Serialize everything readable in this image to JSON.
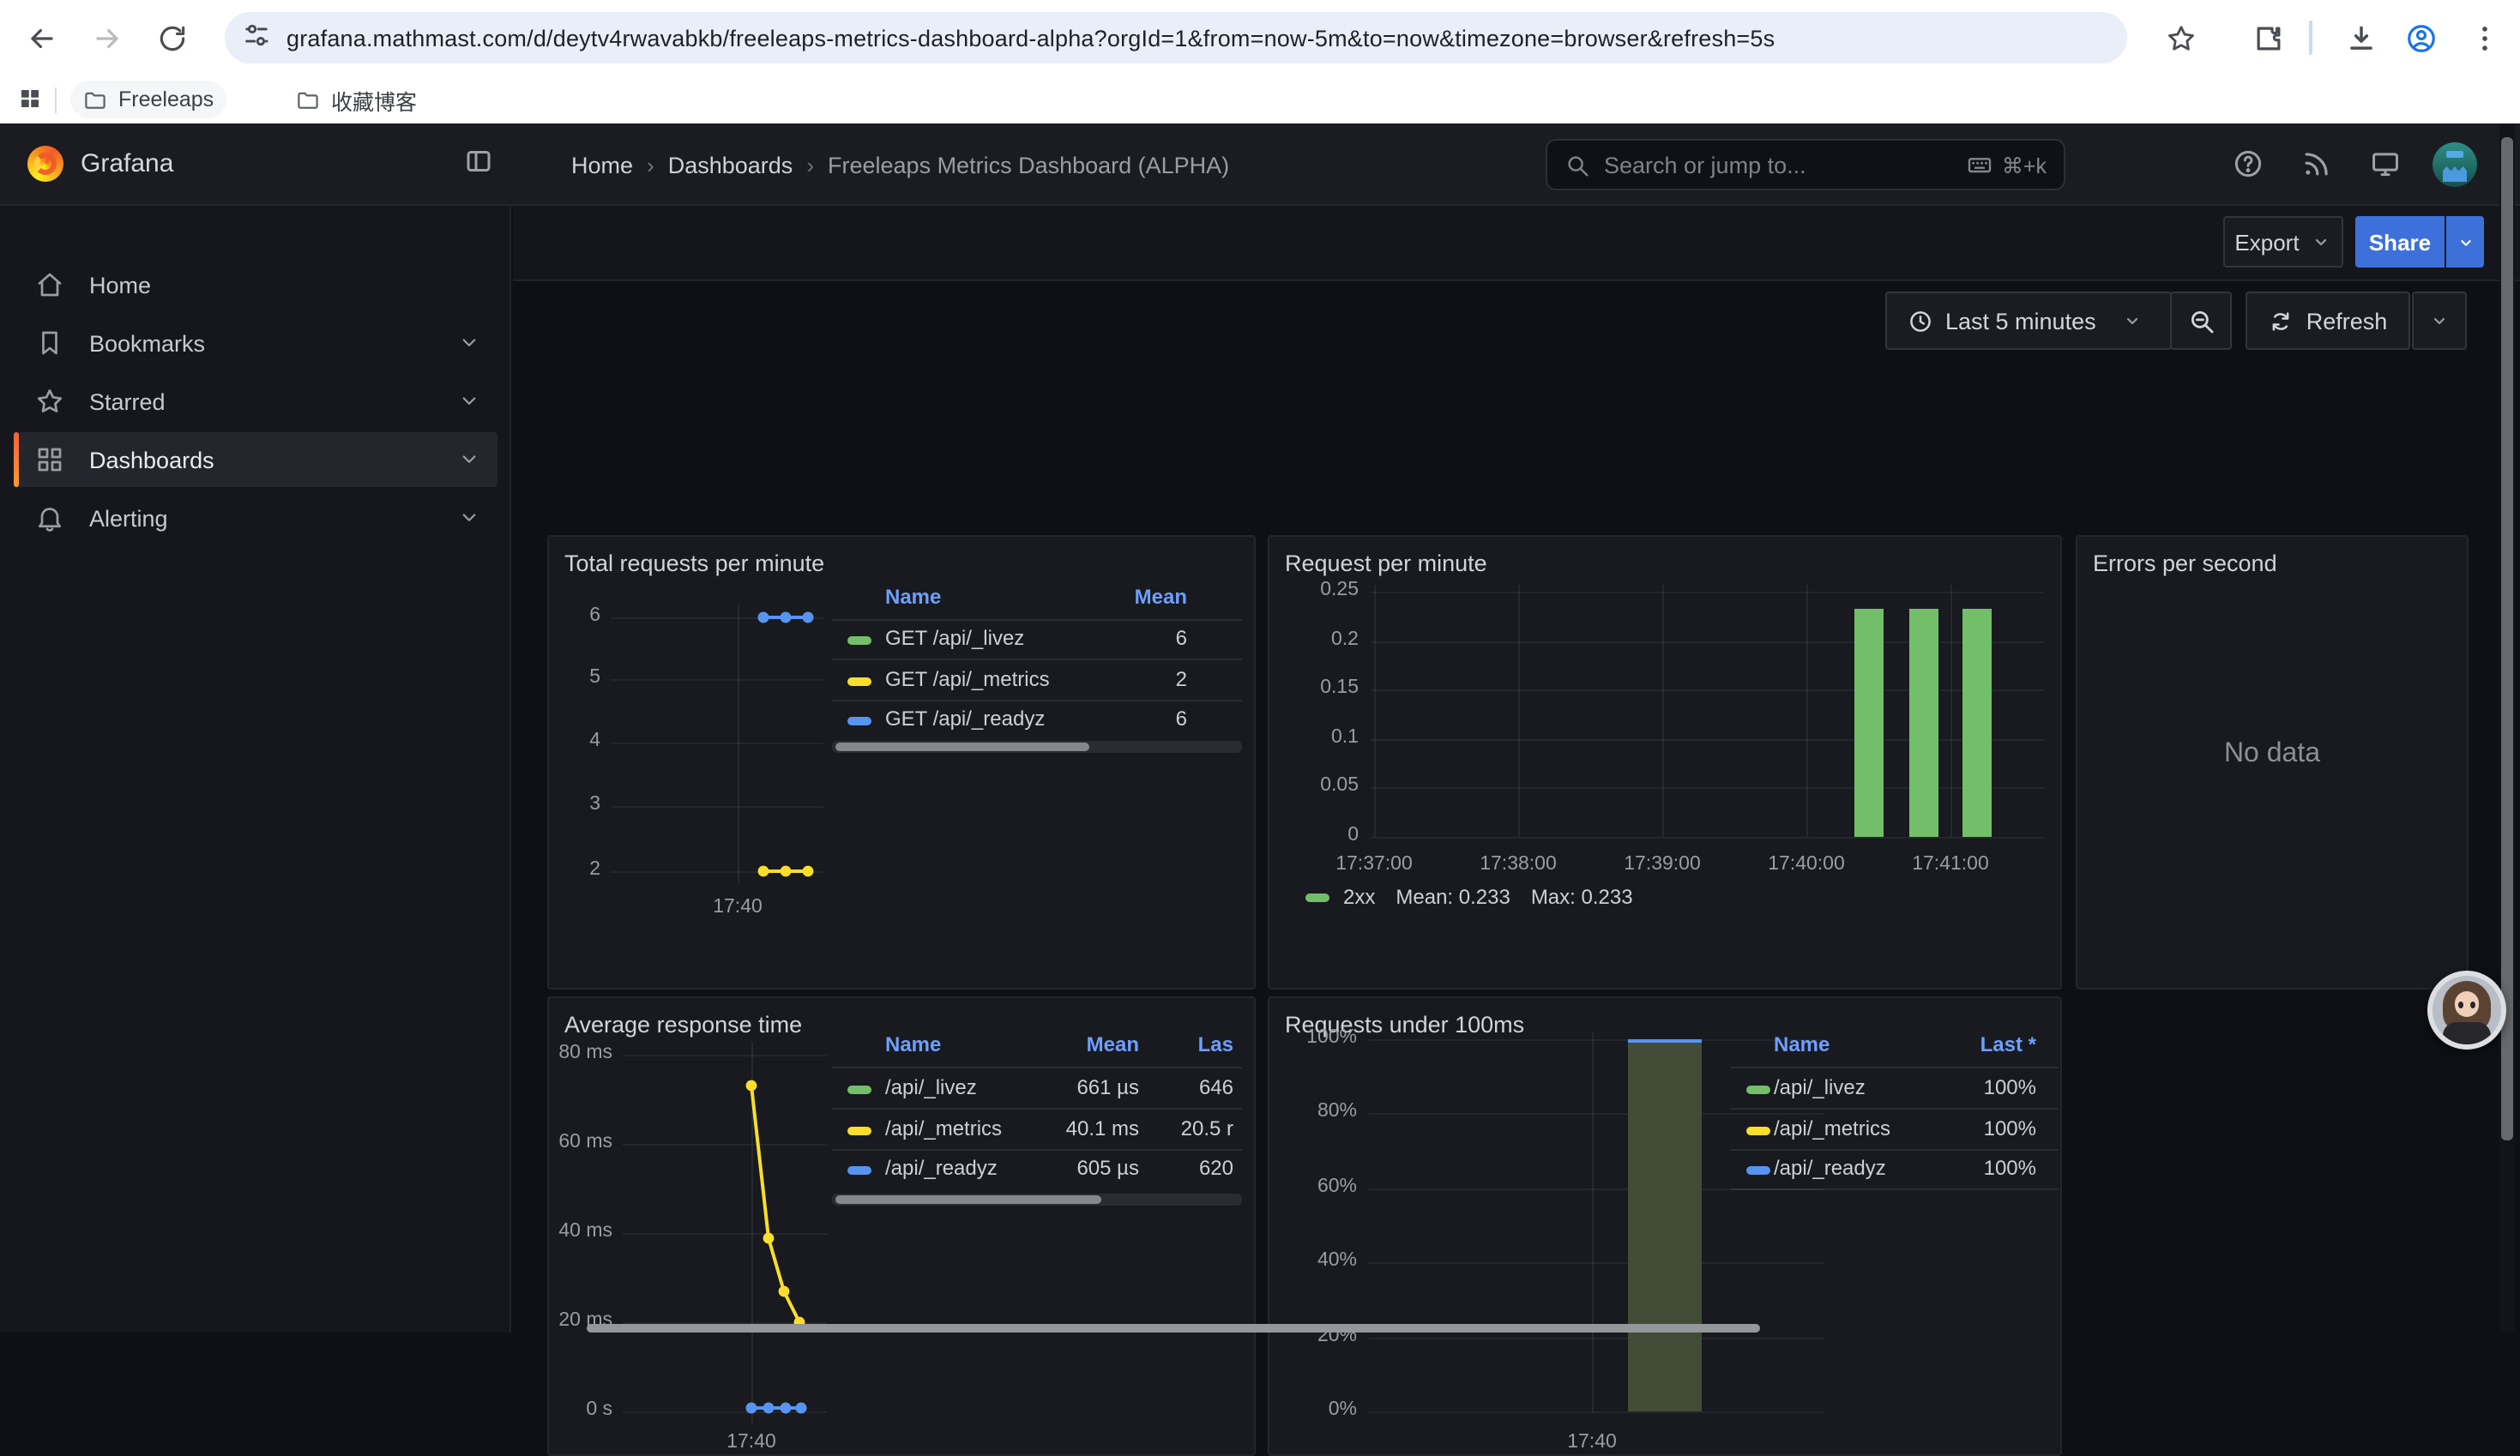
{
  "browser": {
    "url": "grafana.mathmast.com/d/deytv4rwavabkb/freeleaps-metrics-dashboard-alpha?orgId=1&from=now-5m&to=now&timezone=browser&refresh=5s",
    "bookmarks": [
      {
        "label": "Freeleaps"
      },
      {
        "label": "收藏博客"
      }
    ]
  },
  "nav": {
    "brand": "Grafana",
    "breadcrumb": [
      "Home",
      "Dashboards",
      "Freeleaps Metrics Dashboard (ALPHA)"
    ],
    "search_placeholder": "Search or jump to...",
    "search_shortcut": "⌘+k",
    "export_label": "Export",
    "share_label": "Share",
    "time_range": "Last 5 minutes",
    "refresh_label": "Refresh"
  },
  "sidebar": {
    "items": [
      {
        "label": "Home",
        "icon": "home-icon",
        "expandable": false,
        "selected": false
      },
      {
        "label": "Bookmarks",
        "icon": "bookmark-icon",
        "expandable": true,
        "selected": false
      },
      {
        "label": "Starred",
        "icon": "star-icon",
        "expandable": true,
        "selected": false
      },
      {
        "label": "Dashboards",
        "icon": "apps-icon",
        "expandable": true,
        "selected": true
      },
      {
        "label": "Alerting",
        "icon": "bell-icon",
        "expandable": true,
        "selected": false
      }
    ]
  },
  "colors": {
    "green": "#73BF69",
    "yellow": "#FADE2A",
    "blue": "#5794F2",
    "accent_blue": "#3D71D9",
    "link_blue": "#6E9FFF",
    "orange": "#FF7E36"
  },
  "panels": {
    "total_requests": {
      "title": "Total requests per minute",
      "y_ticks": [
        "6",
        "5",
        "4",
        "3",
        "2"
      ],
      "x_tick": "17:40",
      "legend": {
        "headers": [
          "Name",
          "Mean"
        ],
        "rows": [
          {
            "name": "GET /api/_livez",
            "color": "green",
            "mean": "6"
          },
          {
            "name": "GET /api/_metrics",
            "color": "yellow",
            "mean": "2"
          },
          {
            "name": "GET /api/_readyz",
            "color": "blue",
            "mean": "6"
          }
        ]
      }
    },
    "request_per_minute": {
      "title": "Request per minute",
      "y_ticks": [
        "0.25",
        "0.2",
        "0.15",
        "0.1",
        "0.05",
        "0"
      ],
      "x_ticks": [
        "17:37:00",
        "17:38:00",
        "17:39:00",
        "17:40:00",
        "17:41:00"
      ],
      "legend": {
        "series": "2xx",
        "color": "green",
        "mean": "Mean: 0.233",
        "max": "Max: 0.233"
      }
    },
    "errors_per_second": {
      "title": "Errors per second",
      "message": "No data"
    },
    "average_response_time": {
      "title": "Average response time",
      "y_ticks": [
        "80 ms",
        "60 ms",
        "40 ms",
        "20 ms",
        "0 s"
      ],
      "x_tick": "17:40",
      "legend": {
        "headers": [
          "Name",
          "Mean",
          "Las"
        ],
        "rows": [
          {
            "name": "/api/_livez",
            "color": "green",
            "mean": "661 µs",
            "last": "646"
          },
          {
            "name": "/api/_metrics",
            "color": "yellow",
            "mean": "40.1 ms",
            "last": "20.5 r"
          },
          {
            "name": "/api/_readyz",
            "color": "blue",
            "mean": "605 µs",
            "last": "620"
          }
        ]
      }
    },
    "requests_under_100ms": {
      "title": "Requests under 100ms",
      "y_ticks": [
        "100%",
        "80%",
        "60%",
        "40%",
        "20%",
        "0%"
      ],
      "x_tick": "17:40",
      "legend": {
        "headers": [
          "Name",
          "Last *"
        ],
        "rows": [
          {
            "name": "/api/_livez",
            "color": "green",
            "last": "100%"
          },
          {
            "name": "/api/_metrics",
            "color": "yellow",
            "last": "100%"
          },
          {
            "name": "/api/_readyz",
            "color": "blue",
            "last": "100%"
          }
        ]
      }
    }
  },
  "chart_data": [
    {
      "type": "line",
      "title": "Total requests per minute",
      "x_tick_labels": [
        "17:40"
      ],
      "series": [
        {
          "name": "GET /api/_livez",
          "color": "#73BF69",
          "values": [
            6,
            6,
            6
          ],
          "mean": 6
        },
        {
          "name": "GET /api/_metrics",
          "color": "#FADE2A",
          "values": [
            2,
            2,
            2
          ],
          "mean": 2
        },
        {
          "name": "GET /api/_readyz",
          "color": "#5794F2",
          "values": [
            6,
            6,
            6
          ],
          "mean": 6
        }
      ],
      "ylim": [
        1.5,
        6.5
      ],
      "grid": true,
      "legend_position": "right-table"
    },
    {
      "type": "bar",
      "title": "Request per minute",
      "categories": [
        "17:40:20",
        "17:40:45",
        "17:41:10"
      ],
      "series": [
        {
          "name": "2xx",
          "color": "#73BF69",
          "values": [
            0.233,
            0.233,
            0.233
          ],
          "mean": 0.233,
          "max": 0.233
        }
      ],
      "x_tick_labels": [
        "17:37:00",
        "17:38:00",
        "17:39:00",
        "17:40:00",
        "17:41:00"
      ],
      "ylim": [
        0,
        0.25
      ],
      "grid": true,
      "legend_position": "bottom"
    },
    {
      "type": "line",
      "title": "Errors per second",
      "series": [],
      "note": "No data"
    },
    {
      "type": "line",
      "title": "Average response time",
      "x_tick_labels": [
        "17:40"
      ],
      "series": [
        {
          "name": "/api/_livez",
          "color": "#73BF69",
          "values_ms": [
            0.66,
            0.66,
            0.66,
            0.66
          ],
          "mean": "661 µs"
        },
        {
          "name": "/api/_metrics",
          "color": "#FADE2A",
          "values_ms": [
            73,
            39,
            27,
            20
          ],
          "mean": "40.1 ms"
        },
        {
          "name": "/api/_readyz",
          "color": "#5794F2",
          "values_ms": [
            0.6,
            0.6,
            0.6,
            0.6
          ],
          "mean": "605 µs"
        }
      ],
      "ylim_ms": [
        0,
        85
      ],
      "grid": true,
      "legend_position": "right-table"
    },
    {
      "type": "bar",
      "title": "Requests under 100ms",
      "x_tick_labels": [
        "17:40"
      ],
      "series": [
        {
          "name": "/api/_livez",
          "color": "#73BF69",
          "values_pct": [
            100
          ],
          "last": "100%"
        },
        {
          "name": "/api/_metrics",
          "color": "#FADE2A",
          "values_pct": [
            100
          ],
          "last": "100%"
        },
        {
          "name": "/api/_readyz",
          "color": "#5794F2",
          "values_pct": [
            100
          ],
          "last": "100%"
        }
      ],
      "ylim_pct": [
        0,
        100
      ],
      "grid": true,
      "legend_position": "right-table"
    }
  ]
}
